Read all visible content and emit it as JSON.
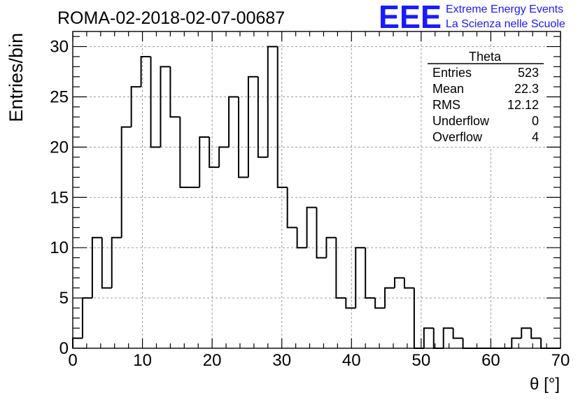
{
  "chart_data": {
    "type": "bar",
    "subtype": "step-histogram",
    "title": "ROMA-02-2018-02-07-00687",
    "xlabel": "θ [°]",
    "ylabel": "Entries/bin",
    "xlim": [
      0,
      70
    ],
    "ylim": [
      0,
      31.5
    ],
    "bin_width": 1.4,
    "x_ticks": [
      0,
      10,
      20,
      30,
      40,
      50,
      60,
      70
    ],
    "y_ticks": [
      0,
      5,
      10,
      15,
      20,
      25,
      30
    ],
    "grid": true,
    "values": [
      1,
      5,
      11,
      6,
      11,
      22,
      26,
      29,
      20,
      28,
      23,
      16,
      16,
      21,
      18,
      20,
      25,
      17,
      27,
      19,
      30,
      16,
      12,
      10,
      14,
      9,
      11,
      5,
      4,
      10,
      5,
      4,
      6,
      7,
      6,
      0,
      2,
      0,
      2,
      1,
      0,
      0,
      0,
      0,
      0,
      1,
      2,
      1,
      0,
      0
    ],
    "line_color": "#000000",
    "stats": {
      "title": "Theta",
      "rows": [
        {
          "label": "Entries",
          "value": "523"
        },
        {
          "label": "Mean",
          "value": "22.3"
        },
        {
          "label": "RMS",
          "value": "12.12"
        },
        {
          "label": "Underflow",
          "value": "0"
        },
        {
          "label": "Overflow",
          "value": "4"
        }
      ]
    }
  },
  "logo": {
    "mark": "EEE",
    "line1": "Extreme Energy Events",
    "line2": "La Scienza nelle Scuole",
    "color": "#1a1aff"
  }
}
